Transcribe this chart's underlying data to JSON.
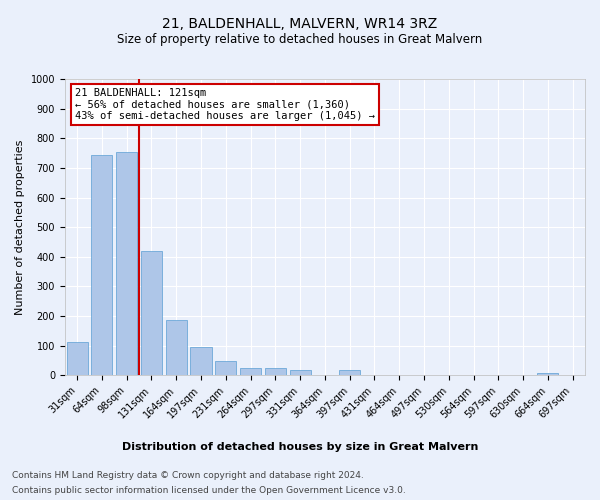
{
  "title": "21, BALDENHALL, MALVERN, WR14 3RZ",
  "subtitle": "Size of property relative to detached houses in Great Malvern",
  "xlabel": "Distribution of detached houses by size in Great Malvern",
  "ylabel": "Number of detached properties",
  "footer_line1": "Contains HM Land Registry data © Crown copyright and database right 2024.",
  "footer_line2": "Contains public sector information licensed under the Open Government Licence v3.0.",
  "categories": [
    "31sqm",
    "64sqm",
    "98sqm",
    "131sqm",
    "164sqm",
    "197sqm",
    "231sqm",
    "264sqm",
    "297sqm",
    "331sqm",
    "364sqm",
    "397sqm",
    "431sqm",
    "464sqm",
    "497sqm",
    "530sqm",
    "564sqm",
    "597sqm",
    "630sqm",
    "664sqm",
    "697sqm"
  ],
  "values": [
    113,
    744,
    755,
    420,
    188,
    97,
    48,
    25,
    25,
    17,
    0,
    17,
    0,
    0,
    0,
    0,
    0,
    0,
    0,
    8,
    0
  ],
  "bar_color": "#aec6e8",
  "bar_edge_color": "#5a9fd4",
  "ylim": [
    0,
    1000
  ],
  "yticks": [
    0,
    100,
    200,
    300,
    400,
    500,
    600,
    700,
    800,
    900,
    1000
  ],
  "annotation_text_line1": "21 BALDENHALL: 121sqm",
  "annotation_text_line2": "← 56% of detached houses are smaller (1,360)",
  "annotation_text_line3": "43% of semi-detached houses are larger (1,045) →",
  "annotation_box_color": "#ffffff",
  "annotation_box_edge": "#cc0000",
  "vline_color": "#cc0000",
  "bg_color": "#eaf0fb",
  "plot_bg_color": "#eaf0fb",
  "grid_color": "#ffffff",
  "title_fontsize": 10,
  "subtitle_fontsize": 8.5,
  "tick_fontsize": 7,
  "axis_label_fontsize": 8,
  "xlabel_fontsize": 8,
  "footer_fontsize": 6.5,
  "annotation_fontsize": 7.5
}
